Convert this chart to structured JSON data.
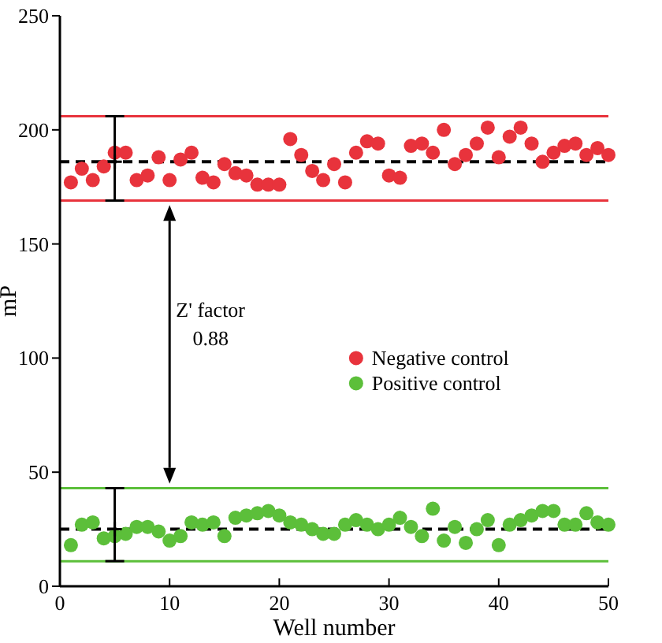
{
  "chart_data": {
    "type": "scatter",
    "xlabel": "Well number",
    "ylabel": "mP",
    "x": [
      1,
      2,
      3,
      4,
      5,
      6,
      7,
      8,
      9,
      10,
      11,
      12,
      13,
      14,
      15,
      16,
      17,
      18,
      19,
      20,
      21,
      22,
      23,
      24,
      25,
      26,
      27,
      28,
      29,
      30,
      31,
      32,
      33,
      34,
      35,
      36,
      37,
      38,
      39,
      40,
      41,
      42,
      43,
      44,
      45,
      46,
      47,
      48,
      49,
      50
    ],
    "series": [
      {
        "name": "Negative control",
        "color": "#e8333c",
        "values": [
          177,
          183,
          178,
          184,
          190,
          190,
          178,
          180,
          188,
          178,
          187,
          190,
          179,
          177,
          185,
          181,
          180,
          176,
          176,
          176,
          196,
          189,
          182,
          178,
          185,
          177,
          190,
          195,
          194,
          180,
          179,
          193,
          194,
          190,
          200,
          185,
          189,
          194,
          201,
          188,
          197,
          201,
          194,
          186,
          190,
          193,
          194,
          189,
          192,
          189
        ]
      },
      {
        "name": "Positive control",
        "color": "#5cbf3a",
        "values": [
          18,
          27,
          28,
          21,
          22,
          23,
          26,
          26,
          24,
          20,
          22,
          28,
          27,
          28,
          22,
          30,
          31,
          32,
          33,
          31,
          28,
          27,
          25,
          23,
          23,
          27,
          29,
          27,
          25,
          27,
          30,
          26,
          22,
          34,
          20,
          26,
          19,
          25,
          29,
          18,
          27,
          29,
          31,
          33,
          33,
          27,
          27,
          32,
          28,
          27
        ]
      },
      {
        "type": "scatter",
        "marker": "cross",
        "color": "#000000",
        "x": [
          5,
          5
        ],
        "values": [
          186,
          25
        ],
        "errors": [
          [
            169,
            206
          ],
          [
            11,
            43
          ]
        ]
      }
    ],
    "ref_lines": [
      {
        "axis": "y",
        "value": 206,
        "color": "#e8333c",
        "line_style": "solid"
      },
      {
        "axis": "y",
        "value": 169,
        "color": "#e8333c",
        "line_style": "solid"
      },
      {
        "axis": "y",
        "value": 186,
        "color": "#000000",
        "line_style": "dashed"
      },
      {
        "axis": "y",
        "value": 43,
        "color": "#5cbf3a",
        "line_style": "solid"
      },
      {
        "axis": "y",
        "value": 11,
        "color": "#5cbf3a",
        "line_style": "solid"
      },
      {
        "axis": "y",
        "value": 25,
        "color": "#000000",
        "line_style": "dashed"
      }
    ],
    "annotations": [
      "Z' factor",
      "0.88"
    ],
    "xlim": [
      0,
      50
    ],
    "xticks": [
      0,
      10,
      20,
      30,
      40,
      50
    ],
    "ylim": [
      0,
      250
    ],
    "yticks": [
      0,
      50,
      100,
      150,
      200,
      250
    ],
    "legend": "right",
    "marker": "circle",
    "grid": false
  }
}
